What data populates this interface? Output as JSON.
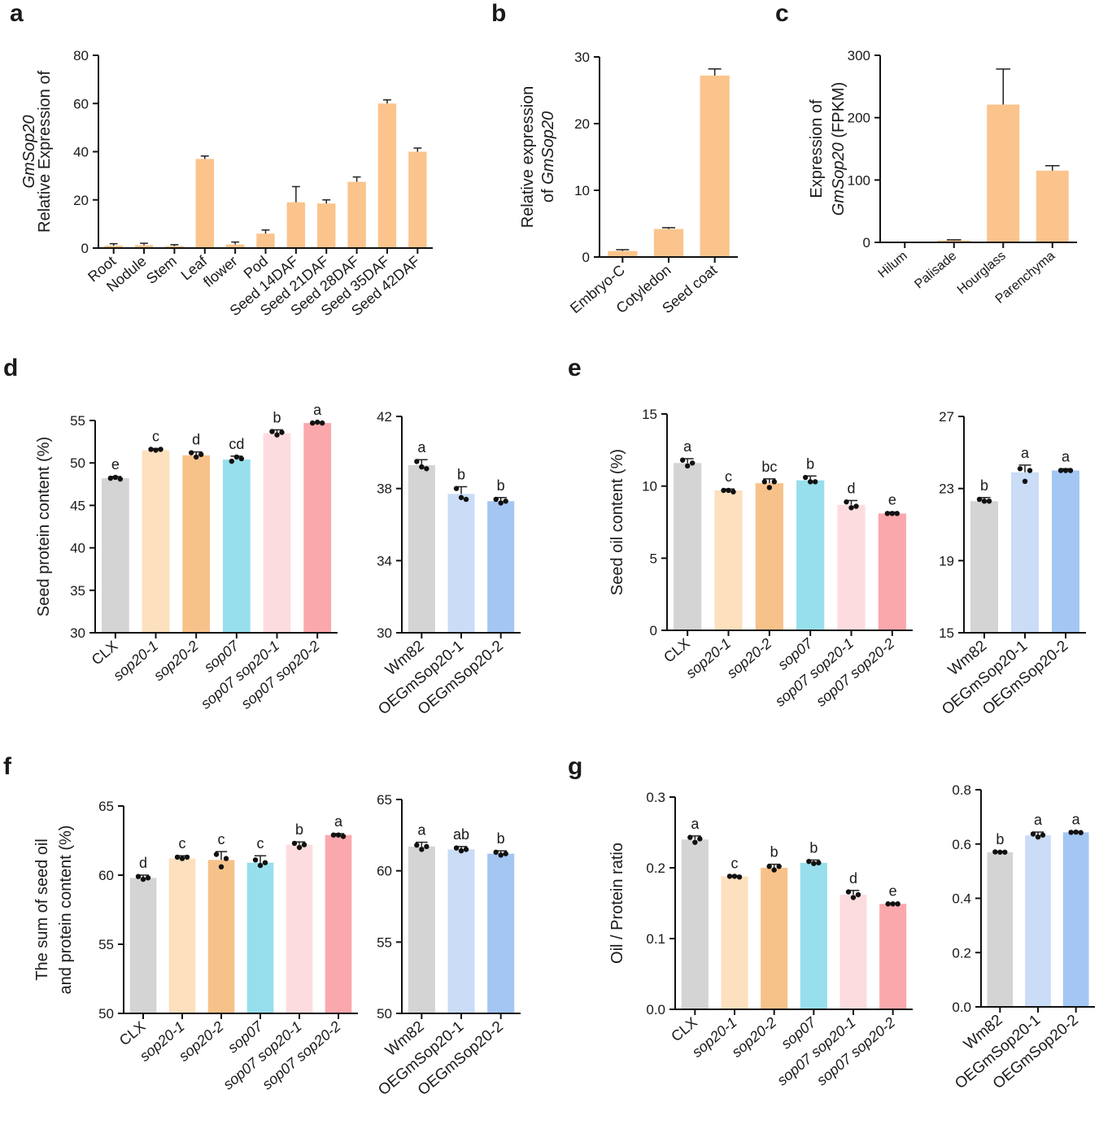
{
  "chart_data": [
    {
      "panel": "a",
      "type": "bar",
      "ylabel": [
        "Relative Expression of",
        "GmSop20"
      ],
      "ylim": [
        0,
        80
      ],
      "yticks": [
        0,
        20,
        40,
        60,
        80
      ],
      "categories": [
        "Root",
        "Nodule",
        "Stem",
        "Leaf",
        "flower",
        "Pod",
        "Seed 14DAF",
        "Seed 21DAF",
        "Seed 28DAF",
        "Seed 35DAF",
        "Seed 42DAF"
      ],
      "values": [
        1.0,
        1.2,
        0.8,
        37,
        1.5,
        6,
        19,
        18.5,
        27.5,
        60,
        40
      ],
      "errors": [
        0.8,
        0.8,
        0.6,
        1.2,
        1.0,
        1.5,
        6.5,
        1.5,
        2.0,
        1.5,
        1.5
      ],
      "colors": [
        "#fbc48c"
      ]
    },
    {
      "panel": "b",
      "type": "bar",
      "ylabel": [
        "Relative expression",
        "of GmSop20"
      ],
      "ylim": [
        0,
        30
      ],
      "yticks": [
        0,
        10,
        20,
        30
      ],
      "categories": [
        "Embryo-C",
        "Cotyledon",
        "Seed coat"
      ],
      "values": [
        0.9,
        4.2,
        27.2
      ],
      "errors": [
        0.2,
        0.2,
        1.0
      ],
      "colors": [
        "#fbc48c"
      ]
    },
    {
      "panel": "c",
      "type": "bar",
      "ylabel": [
        "Expression of",
        "GmSop20 (FPKM)"
      ],
      "ylim": [
        0,
        300
      ],
      "yticks": [
        0,
        100,
        200,
        300
      ],
      "categories": [
        "Hilum",
        "Palisade",
        "Hourglass",
        "Parenchyma"
      ],
      "values": [
        0,
        3,
        221,
        115
      ],
      "errors": [
        0,
        1,
        57,
        8
      ],
      "colors": [
        "#fbc48c"
      ]
    },
    {
      "panel": "d",
      "type": "bar",
      "ylabel": [
        "Seed protein content (%)"
      ],
      "ylim": [
        30,
        55
      ],
      "yticks": [
        30,
        35,
        40,
        45,
        50,
        55
      ],
      "categories": [
        "CLX",
        "sop20-1",
        "sop20-2",
        "sop07",
        "sop07 sop20-1",
        "sop07 sop20-2"
      ],
      "values": [
        48.2,
        51.5,
        50.9,
        50.4,
        53.5,
        54.7
      ],
      "errors": [
        0.2,
        0.2,
        0.4,
        0.4,
        0.4,
        0.1
      ],
      "points": [
        [
          48.2,
          48.3,
          48.1
        ],
        [
          51.6,
          51.5,
          51.6
        ],
        [
          51.2,
          50.7,
          51.0
        ],
        [
          50.2,
          50.7,
          50.5
        ],
        [
          53.7,
          53.3,
          53.6
        ],
        [
          54.7,
          54.8,
          54.7
        ]
      ],
      "letters": [
        "e",
        "c",
        "d",
        "cd",
        "b",
        "a"
      ],
      "colors": [
        "#d4d4d4",
        "#fde0bd",
        "#f7c28a",
        "#97dfec",
        "#fddcdf",
        "#fba8ad"
      ]
    },
    {
      "panel": "d",
      "type": "bar",
      "ylim": [
        30,
        42
      ],
      "yticks": [
        30,
        34,
        38,
        42
      ],
      "categories": [
        "Wm82",
        "OEGmSop20-1",
        "OEGmSop20-2"
      ],
      "values": [
        39.3,
        37.7,
        37.3
      ],
      "errors": [
        0.3,
        0.4,
        0.2
      ],
      "points": [
        [
          39.5,
          39.2,
          39.1
        ],
        [
          38.0,
          37.5,
          37.4
        ],
        [
          37.4,
          37.2,
          37.3
        ]
      ],
      "letters": [
        "a",
        "b",
        "b"
      ],
      "colors": [
        "#d4d4d4",
        "#cadcf6",
        "#a4c6f3"
      ]
    },
    {
      "panel": "e",
      "type": "bar",
      "ylabel": [
        "Seed oil content (%)"
      ],
      "ylim": [
        0,
        15
      ],
      "yticks": [
        0,
        5,
        10,
        15
      ],
      "categories": [
        "CLX",
        "sop20-1",
        "sop20-2",
        "sop07",
        "sop07 sop20-1",
        "sop07 sop20-2"
      ],
      "values": [
        11.6,
        9.7,
        10.2,
        10.4,
        8.7,
        8.1
      ],
      "errors": [
        0.3,
        0.1,
        0.3,
        0.3,
        0.3,
        0.1
      ],
      "points": [
        [
          11.8,
          11.4,
          11.6
        ],
        [
          9.7,
          9.7,
          9.6
        ],
        [
          10.3,
          9.9,
          10.3
        ],
        [
          10.6,
          10.3,
          10.3
        ],
        [
          8.9,
          8.5,
          8.6
        ],
        [
          8.1,
          8.1,
          8.1
        ]
      ],
      "letters": [
        "a",
        "c",
        "bc",
        "b",
        "d",
        "e"
      ],
      "colors": [
        "#d4d4d4",
        "#fde0bd",
        "#f7c28a",
        "#97dfec",
        "#fddcdf",
        "#fba8ad"
      ]
    },
    {
      "panel": "e",
      "type": "bar",
      "ylim": [
        15,
        27
      ],
      "yticks": [
        15,
        19,
        23,
        27
      ],
      "categories": [
        "Wm82",
        "OEGmSop20-1",
        "OEGmSop20-2"
      ],
      "values": [
        22.3,
        23.9,
        24.0
      ],
      "errors": [
        0.2,
        0.4,
        0.1
      ],
      "points": [
        [
          22.4,
          22.3,
          22.3
        ],
        [
          24.1,
          23.4,
          24.0
        ],
        [
          24.0,
          24.0,
          24.0
        ]
      ],
      "letters": [
        "b",
        "a",
        "a"
      ],
      "colors": [
        "#d4d4d4",
        "#cadcf6",
        "#a4c6f3"
      ]
    },
    {
      "panel": "f",
      "type": "bar",
      "ylabel": [
        "The sum of seed oil",
        "and protein content (%)"
      ],
      "ylim": [
        50,
        65
      ],
      "yticks": [
        50,
        55,
        60,
        65
      ],
      "categories": [
        "CLX",
        "sop20-1",
        "sop20-2",
        "sop07",
        "sop07 sop20-1",
        "sop07 sop20-2"
      ],
      "values": [
        59.8,
        61.2,
        61.1,
        60.9,
        62.2,
        62.9
      ],
      "errors": [
        0.2,
        0.2,
        0.6,
        0.5,
        0.2,
        0.1
      ],
      "points": [
        [
          59.9,
          59.7,
          59.8
        ],
        [
          61.3,
          61.2,
          61.3
        ],
        [
          61.5,
          60.6,
          61.2
        ],
        [
          61.1,
          60.7,
          60.9
        ],
        [
          62.3,
          62.0,
          62.2
        ],
        [
          62.9,
          62.9,
          62.8
        ]
      ],
      "letters": [
        "d",
        "c",
        "c",
        "c",
        "b",
        "a"
      ],
      "colors": [
        "#d4d4d4",
        "#fde0bd",
        "#f7c28a",
        "#97dfec",
        "#fddcdf",
        "#fba8ad"
      ]
    },
    {
      "panel": "f",
      "type": "bar",
      "ylim": [
        50,
        65
      ],
      "yticks": [
        50,
        55,
        60,
        65
      ],
      "categories": [
        "Wm82",
        "OEGmSop20-1",
        "OEGmSop20-2"
      ],
      "values": [
        61.7,
        61.5,
        61.2
      ],
      "errors": [
        0.3,
        0.2,
        0.2
      ],
      "points": [
        [
          61.8,
          61.5,
          61.7
        ],
        [
          61.6,
          61.4,
          61.5
        ],
        [
          61.3,
          61.1,
          61.2
        ]
      ],
      "letters": [
        "a",
        "ab",
        "b"
      ],
      "colors": [
        "#d4d4d4",
        "#cadcf6",
        "#a4c6f3"
      ]
    },
    {
      "panel": "g",
      "type": "bar",
      "ylabel": [
        "Oil / Protein ratio"
      ],
      "ylim": [
        0,
        0.3
      ],
      "yticks": [
        "0.0",
        "0.1",
        "0.2",
        "0.3"
      ],
      "categories": [
        "CLX",
        "sop20-1",
        "sop20-2",
        "sop07",
        "sop07 sop20-1",
        "sop07 sop20-2"
      ],
      "values": [
        0.24,
        0.188,
        0.2,
        0.207,
        0.162,
        0.149
      ],
      "errors": [
        0.005,
        0.001,
        0.005,
        0.004,
        0.006,
        0.001
      ],
      "points": [
        [
          0.243,
          0.236,
          0.241
        ],
        [
          0.188,
          0.188,
          0.187
        ],
        [
          0.202,
          0.197,
          0.202
        ],
        [
          0.209,
          0.206,
          0.207
        ],
        [
          0.166,
          0.158,
          0.162
        ],
        [
          0.149,
          0.149,
          0.149
        ]
      ],
      "letters": [
        "a",
        "c",
        "b",
        "b",
        "d",
        "e"
      ],
      "colors": [
        "#d4d4d4",
        "#fde0bd",
        "#f7c28a",
        "#97dfec",
        "#fddcdf",
        "#fba8ad"
      ]
    },
    {
      "panel": "g",
      "type": "bar",
      "ylim": [
        0,
        0.8
      ],
      "yticks": [
        "0.0",
        "0.2",
        "0.4",
        "0.6",
        "0.8"
      ],
      "categories": [
        "Wm82",
        "OEGmSop20-1",
        "OEGmSop20-2"
      ],
      "values": [
        0.57,
        0.632,
        0.643
      ],
      "errors": [
        0.003,
        0.012,
        0.003
      ],
      "points": [
        [
          0.571,
          0.57,
          0.57
        ],
        [
          0.637,
          0.626,
          0.633
        ],
        [
          0.643,
          0.644,
          0.642
        ]
      ],
      "letters": [
        "b",
        "a",
        "a"
      ],
      "colors": [
        "#d4d4d4",
        "#cadcf6",
        "#a4c6f3"
      ]
    }
  ]
}
